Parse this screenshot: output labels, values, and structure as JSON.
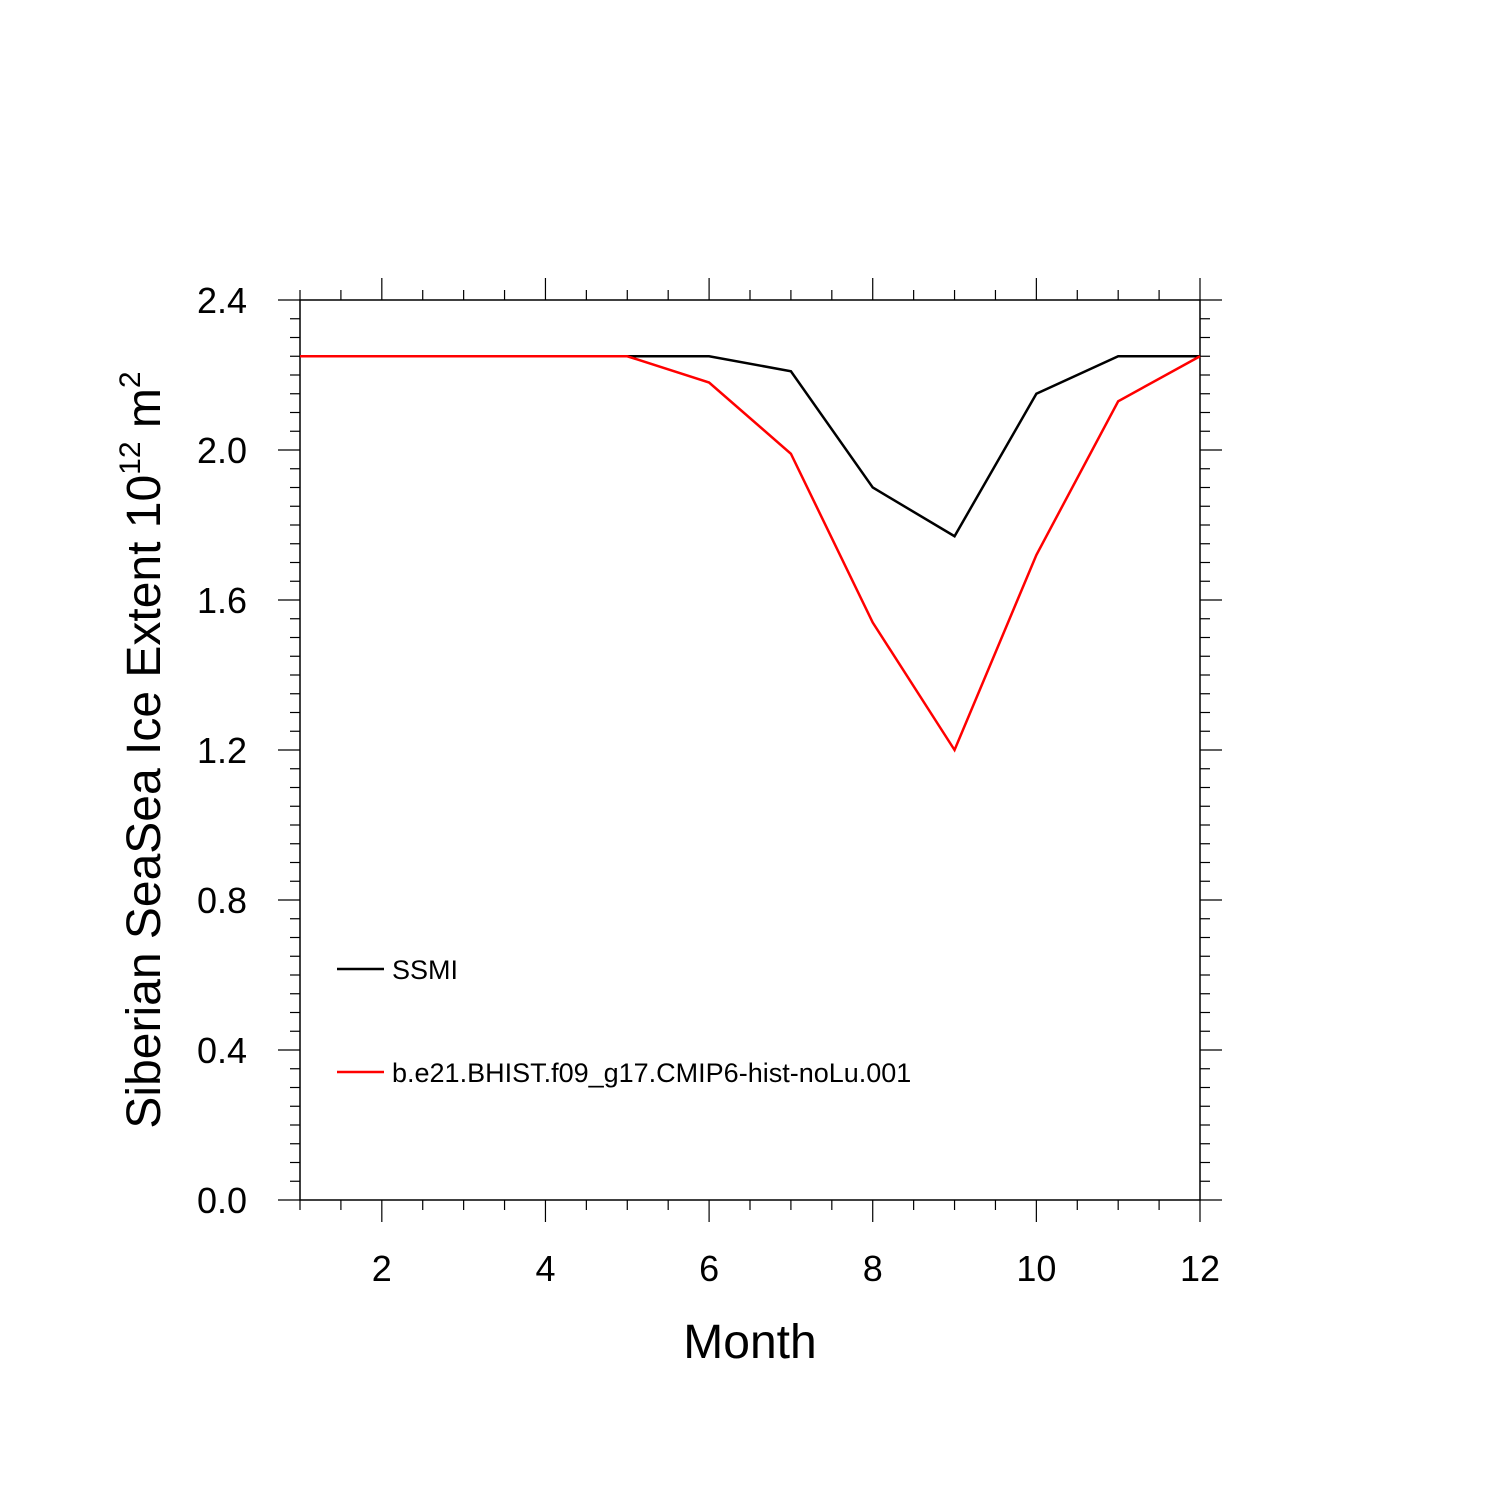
{
  "chart_data": {
    "type": "line",
    "xlabel": "Month",
    "ylabel": {
      "main": "Siberian SeaSea Ice Extent 10",
      "exp1": "12",
      "unit": " m",
      "exp2": "2"
    },
    "xlim": [
      1,
      12
    ],
    "ylim": [
      0.0,
      2.4
    ],
    "x_ticks": [
      2,
      4,
      6,
      8,
      10,
      12
    ],
    "y_ticks": [
      0.0,
      0.4,
      0.8,
      1.2,
      1.6,
      2.0,
      2.4
    ],
    "y_tick_labels": [
      "0.0",
      "0.4",
      "0.8",
      "1.2",
      "1.6",
      "2.0",
      "2.4"
    ],
    "x": [
      1,
      2,
      3,
      4,
      5,
      6,
      7,
      8,
      9,
      10,
      11,
      12
    ],
    "series": [
      {
        "name": "SSMI",
        "color": "#000000",
        "values": [
          2.25,
          2.25,
          2.25,
          2.25,
          2.25,
          2.25,
          2.21,
          1.9,
          1.77,
          2.15,
          2.25,
          2.25
        ]
      },
      {
        "name": "b.e21.BHIST.f09_g17.CMIP6-hist-noLu.001",
        "color": "#ff0000",
        "values": [
          2.25,
          2.25,
          2.25,
          2.25,
          2.25,
          2.18,
          1.99,
          1.54,
          1.2,
          1.72,
          2.13,
          2.25
        ]
      }
    ],
    "legend_position": "lower-left",
    "grid": false
  }
}
